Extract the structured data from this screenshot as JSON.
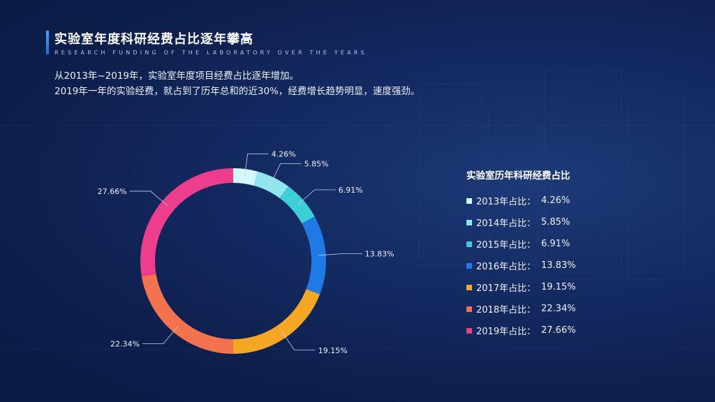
{
  "header": {
    "title": "实验室年度科研经费占比逐年攀高",
    "subtitle": "RESEARCH FUNDING OF THE LABORATORY OVER THE YEARS"
  },
  "description": {
    "line1": "从2013年~2019年，实验室年度项目经费占比逐年增加。",
    "line2": "2019年一年的实验经费，就占到了历年总和的近30%，经费增长趋势明显，速度强劲。"
  },
  "chart_data": {
    "type": "pie",
    "variant": "donut",
    "legend_title": "实验室历年科研经费占比",
    "legend_position": "right",
    "slices": [
      {
        "legend_label": "2013年占比：",
        "value": 4.26,
        "label": "4.26%",
        "color": "#d3f7fb"
      },
      {
        "legend_label": "2014年占比：",
        "value": 5.85,
        "label": "5.85%",
        "color": "#8fe6ee"
      },
      {
        "legend_label": "2015年占比：",
        "value": 6.91,
        "label": "6.91%",
        "color": "#3cd0d6"
      },
      {
        "legend_label": "2016年占比：",
        "value": 13.83,
        "label": "13.83%",
        "color": "#1f7ae6"
      },
      {
        "legend_label": "2017年占比：",
        "value": 19.15,
        "label": "19.15%",
        "color": "#f5a623"
      },
      {
        "legend_label": "2018年占比：",
        "value": 22.34,
        "label": "22.34%",
        "color": "#f4734f"
      },
      {
        "legend_label": "2019年占比：",
        "value": 27.66,
        "label": "27.66%",
        "color": "#ee3d8c"
      }
    ]
  }
}
